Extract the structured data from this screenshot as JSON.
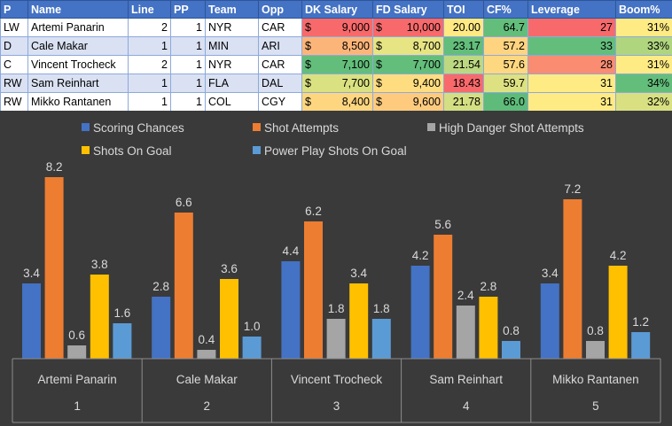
{
  "table": {
    "columns": [
      "P",
      "Name",
      "Line",
      "PP",
      "Team",
      "Opp",
      "DK Salary",
      "FD Salary",
      "TOI",
      "CF%",
      "Leverage",
      "Boom%"
    ],
    "rows": [
      {
        "p": "LW",
        "name": "Artemi Panarin",
        "line": "2",
        "pp": "1",
        "team": "NYR",
        "opp": "CAR",
        "dk": "9,000",
        "fd": "10,000",
        "toi": "20.00",
        "cf": "64.7",
        "lev": "27",
        "boom": "31%"
      },
      {
        "p": "D",
        "name": "Cale Makar",
        "line": "1",
        "pp": "1",
        "team": "MIN",
        "opp": "ARI",
        "dk": "8,500",
        "fd": "8,700",
        "toi": "23.17",
        "cf": "57.2",
        "lev": "33",
        "boom": "33%"
      },
      {
        "p": "C",
        "name": "Vincent Trocheck",
        "line": "2",
        "pp": "1",
        "team": "NYR",
        "opp": "CAR",
        "dk": "7,100",
        "fd": "7,700",
        "toi": "21.54",
        "cf": "57.6",
        "lev": "28",
        "boom": "31%"
      },
      {
        "p": "RW",
        "name": "Sam Reinhart",
        "line": "1",
        "pp": "1",
        "team": "FLA",
        "opp": "DAL",
        "dk": "7,700",
        "fd": "9,400",
        "toi": "18.43",
        "cf": "59.7",
        "lev": "31",
        "boom": "34%"
      },
      {
        "p": "RW",
        "name": "Mikko Rantanen",
        "line": "1",
        "pp": "1",
        "team": "COL",
        "opp": "CGY",
        "dk": "8,400",
        "fd": "9,600",
        "toi": "21.78",
        "cf": "66.0",
        "lev": "31",
        "boom": "32%"
      }
    ],
    "currency_symbol": "$",
    "colors": {
      "dk": [
        "#f8696b",
        "#fcb579",
        "#63be7b",
        "#d9e181",
        "#fed680"
      ],
      "fd": [
        "#f8696b",
        "#e6e483",
        "#63be7b",
        "#fedd81",
        "#fecb7e"
      ],
      "toi": [
        "#fee983",
        "#63be7b",
        "#bcd881",
        "#f8696b",
        "#d4de82"
      ],
      "cf": [
        "#63be7b",
        "#fed480",
        "#fed880",
        "#dde182",
        "#5ebb79"
      ],
      "lev": [
        "#f8696b",
        "#63be7b",
        "#fa8c72",
        "#ffeb84",
        "#ffeb84"
      ],
      "boom": [
        "#ffeb84",
        "#b0d57f",
        "#ffeb84",
        "#63be7b",
        "#d8e082"
      ]
    }
  },
  "chart_data": {
    "type": "bar",
    "categories": [
      "Artemi Panarin",
      "Cale Makar",
      "Vincent Trocheck",
      "Sam Reinhart",
      "Mikko Rantanen"
    ],
    "category_index": [
      "1",
      "2",
      "3",
      "4",
      "5"
    ],
    "series": [
      {
        "name": "Scoring Chances",
        "values": [
          3.4,
          2.8,
          4.4,
          4.2,
          3.4
        ],
        "color": "#4472c4"
      },
      {
        "name": "Shot Attempts",
        "values": [
          8.2,
          6.6,
          6.2,
          5.6,
          7.2
        ],
        "color": "#ed7d31"
      },
      {
        "name": "High Danger Shot Attempts",
        "values": [
          0.6,
          0.4,
          1.8,
          2.4,
          0.8
        ],
        "color": "#a5a5a5"
      },
      {
        "name": "Shots On Goal",
        "values": [
          3.8,
          3.6,
          3.4,
          2.8,
          4.2
        ],
        "color": "#ffc000"
      },
      {
        "name": "Power Play Shots On Goal",
        "values": [
          1.6,
          1.0,
          1.8,
          0.8,
          1.2
        ],
        "color": "#5b9bd5"
      }
    ],
    "ylim": [
      0,
      9
    ],
    "legend_position": "top",
    "grid": false,
    "background": "#3a3a3a"
  }
}
